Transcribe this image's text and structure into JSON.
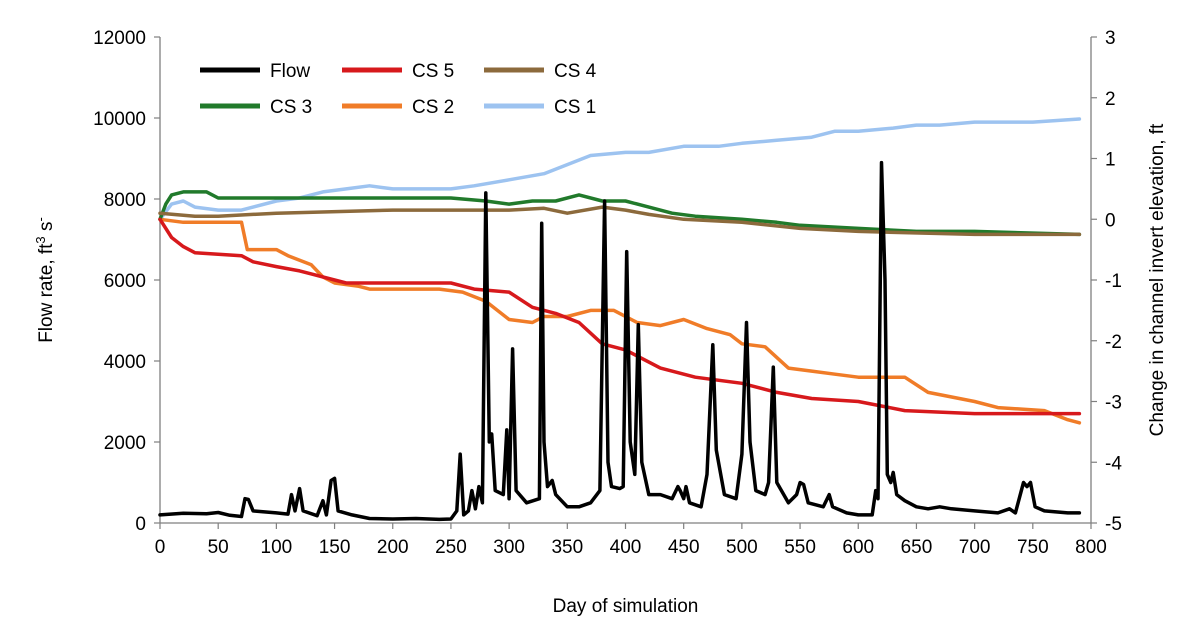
{
  "chart_data": {
    "type": "line",
    "xlabel": "Day of simulation",
    "ylabel_left": "Flow rate, ft",
    "ylabel_left_sup": "3",
    "ylabel_left_tail": " s",
    "ylabel_left_tail_sup": "-",
    "ylabel_right": "Change in channel invert elevation, ft",
    "xlim": [
      0,
      800
    ],
    "ylim_left": [
      0,
      12000
    ],
    "ylim_right": [
      -5,
      3
    ],
    "x_ticks": [
      "0",
      "50",
      "100",
      "150",
      "200",
      "250",
      "300",
      "350",
      "400",
      "450",
      "500",
      "550",
      "600",
      "650",
      "700",
      "750",
      "800"
    ],
    "y_left_ticks": [
      "0",
      "2000",
      "4000",
      "6000",
      "8000",
      "10000",
      "12000"
    ],
    "y_right_ticks": [
      "-5",
      "-4",
      "-3",
      "-2",
      "-1",
      "0",
      "1",
      "2",
      "3"
    ],
    "grid": false,
    "legend_position": "top-left",
    "series": [
      {
        "name": "Flow",
        "axis": "left",
        "color": "#000000",
        "width": 3.5,
        "points": [
          [
            0,
            200
          ],
          [
            20,
            240
          ],
          [
            40,
            230
          ],
          [
            50,
            260
          ],
          [
            60,
            190
          ],
          [
            70,
            160
          ],
          [
            73,
            600
          ],
          [
            76,
            580
          ],
          [
            80,
            300
          ],
          [
            100,
            250
          ],
          [
            110,
            220
          ],
          [
            113,
            700
          ],
          [
            116,
            300
          ],
          [
            120,
            850
          ],
          [
            123,
            300
          ],
          [
            135,
            180
          ],
          [
            140,
            550
          ],
          [
            143,
            200
          ],
          [
            147,
            1050
          ],
          [
            150,
            1100
          ],
          [
            153,
            300
          ],
          [
            165,
            200
          ],
          [
            180,
            110
          ],
          [
            200,
            100
          ],
          [
            220,
            110
          ],
          [
            240,
            90
          ],
          [
            250,
            100
          ],
          [
            255,
            300
          ],
          [
            258,
            1700
          ],
          [
            261,
            200
          ],
          [
            265,
            300
          ],
          [
            268,
            800
          ],
          [
            271,
            350
          ],
          [
            274,
            900
          ],
          [
            277,
            500
          ],
          [
            280,
            8150
          ],
          [
            283,
            2000
          ],
          [
            285,
            2200
          ],
          [
            288,
            800
          ],
          [
            295,
            700
          ],
          [
            298,
            2300
          ],
          [
            300,
            600
          ],
          [
            303,
            4300
          ],
          [
            306,
            800
          ],
          [
            315,
            500
          ],
          [
            326,
            600
          ],
          [
            328,
            7400
          ],
          [
            330,
            2000
          ],
          [
            333,
            900
          ],
          [
            337,
            1050
          ],
          [
            340,
            700
          ],
          [
            350,
            400
          ],
          [
            360,
            400
          ],
          [
            370,
            500
          ],
          [
            378,
            800
          ],
          [
            382,
            7950
          ],
          [
            385,
            1500
          ],
          [
            388,
            900
          ],
          [
            395,
            850
          ],
          [
            398,
            900
          ],
          [
            401,
            6700
          ],
          [
            404,
            2000
          ],
          [
            408,
            1200
          ],
          [
            411,
            4900
          ],
          [
            414,
            1500
          ],
          [
            420,
            700
          ],
          [
            430,
            700
          ],
          [
            440,
            600
          ],
          [
            445,
            900
          ],
          [
            447,
            800
          ],
          [
            450,
            600
          ],
          [
            452,
            900
          ],
          [
            455,
            500
          ],
          [
            465,
            400
          ],
          [
            470,
            1200
          ],
          [
            475,
            4400
          ],
          [
            478,
            1800
          ],
          [
            485,
            700
          ],
          [
            495,
            600
          ],
          [
            500,
            1700
          ],
          [
            504,
            4950
          ],
          [
            507,
            2000
          ],
          [
            512,
            800
          ],
          [
            520,
            700
          ],
          [
            523,
            1000
          ],
          [
            527,
            3850
          ],
          [
            530,
            1000
          ],
          [
            540,
            500
          ],
          [
            547,
            700
          ],
          [
            550,
            1000
          ],
          [
            553,
            950
          ],
          [
            557,
            500
          ],
          [
            570,
            400
          ],
          [
            575,
            700
          ],
          [
            578,
            400
          ],
          [
            590,
            250
          ],
          [
            600,
            200
          ],
          [
            612,
            200
          ],
          [
            615,
            800
          ],
          [
            617,
            600
          ],
          [
            620,
            8900
          ],
          [
            623,
            6000
          ],
          [
            625,
            1200
          ],
          [
            628,
            1000
          ],
          [
            630,
            1250
          ],
          [
            633,
            700
          ],
          [
            640,
            550
          ],
          [
            650,
            400
          ],
          [
            660,
            350
          ],
          [
            670,
            400
          ],
          [
            680,
            350
          ],
          [
            700,
            300
          ],
          [
            720,
            250
          ],
          [
            730,
            350
          ],
          [
            735,
            250
          ],
          [
            742,
            1000
          ],
          [
            745,
            900
          ],
          [
            748,
            1000
          ],
          [
            752,
            400
          ],
          [
            760,
            300
          ],
          [
            780,
            250
          ],
          [
            790,
            250
          ]
        ]
      },
      {
        "name": "CS 5",
        "axis": "right",
        "color": "#d7191c",
        "width": 3.5,
        "points": [
          [
            0,
            0
          ],
          [
            10,
            -0.3
          ],
          [
            20,
            -0.45
          ],
          [
            30,
            -0.55
          ],
          [
            70,
            -0.6
          ],
          [
            80,
            -0.7
          ],
          [
            100,
            -0.78
          ],
          [
            120,
            -0.85
          ],
          [
            130,
            -0.9
          ],
          [
            150,
            -1.0
          ],
          [
            160,
            -1.05
          ],
          [
            250,
            -1.05
          ],
          [
            270,
            -1.15
          ],
          [
            300,
            -1.2
          ],
          [
            320,
            -1.45
          ],
          [
            340,
            -1.55
          ],
          [
            360,
            -1.7
          ],
          [
            380,
            -2.05
          ],
          [
            400,
            -2.15
          ],
          [
            430,
            -2.45
          ],
          [
            460,
            -2.6
          ],
          [
            500,
            -2.7
          ],
          [
            530,
            -2.85
          ],
          [
            560,
            -2.95
          ],
          [
            600,
            -3.0
          ],
          [
            640,
            -3.15
          ],
          [
            700,
            -3.2
          ],
          [
            790,
            -3.2
          ]
        ]
      },
      {
        "name": "CS 4",
        "axis": "right",
        "color": "#8c6a3c",
        "width": 3.5,
        "points": [
          [
            0,
            0.1
          ],
          [
            30,
            0.05
          ],
          [
            50,
            0.05
          ],
          [
            100,
            0.1
          ],
          [
            200,
            0.15
          ],
          [
            300,
            0.15
          ],
          [
            330,
            0.18
          ],
          [
            350,
            0.1
          ],
          [
            380,
            0.2
          ],
          [
            400,
            0.15
          ],
          [
            420,
            0.08
          ],
          [
            450,
            0.0
          ],
          [
            500,
            -0.05
          ],
          [
            550,
            -0.15
          ],
          [
            600,
            -0.2
          ],
          [
            700,
            -0.25
          ],
          [
            790,
            -0.25
          ]
        ]
      },
      {
        "name": "CS 3",
        "axis": "right",
        "color": "#217a2b",
        "width": 3.5,
        "points": [
          [
            0,
            0
          ],
          [
            5,
            0.25
          ],
          [
            10,
            0.4
          ],
          [
            20,
            0.45
          ],
          [
            40,
            0.45
          ],
          [
            50,
            0.35
          ],
          [
            100,
            0.35
          ],
          [
            200,
            0.35
          ],
          [
            250,
            0.35
          ],
          [
            280,
            0.3
          ],
          [
            300,
            0.25
          ],
          [
            320,
            0.3
          ],
          [
            340,
            0.3
          ],
          [
            360,
            0.4
          ],
          [
            380,
            0.3
          ],
          [
            400,
            0.3
          ],
          [
            420,
            0.2
          ],
          [
            440,
            0.1
          ],
          [
            460,
            0.05
          ],
          [
            500,
            0.0
          ],
          [
            530,
            -0.05
          ],
          [
            550,
            -0.1
          ],
          [
            600,
            -0.15
          ],
          [
            650,
            -0.2
          ],
          [
            700,
            -0.2
          ],
          [
            790,
            -0.25
          ]
        ]
      },
      {
        "name": "CS 2",
        "axis": "right",
        "color": "#f07c28",
        "width": 3.5,
        "points": [
          [
            0,
            0
          ],
          [
            20,
            -0.05
          ],
          [
            70,
            -0.05
          ],
          [
            75,
            -0.5
          ],
          [
            100,
            -0.5
          ],
          [
            110,
            -0.6
          ],
          [
            130,
            -0.75
          ],
          [
            140,
            -0.95
          ],
          [
            150,
            -1.05
          ],
          [
            170,
            -1.1
          ],
          [
            180,
            -1.15
          ],
          [
            240,
            -1.15
          ],
          [
            260,
            -1.2
          ],
          [
            280,
            -1.35
          ],
          [
            300,
            -1.65
          ],
          [
            320,
            -1.7
          ],
          [
            330,
            -1.6
          ],
          [
            350,
            -1.6
          ],
          [
            370,
            -1.5
          ],
          [
            390,
            -1.5
          ],
          [
            410,
            -1.7
          ],
          [
            430,
            -1.75
          ],
          [
            450,
            -1.65
          ],
          [
            470,
            -1.8
          ],
          [
            490,
            -1.9
          ],
          [
            500,
            -2.05
          ],
          [
            520,
            -2.1
          ],
          [
            540,
            -2.45
          ],
          [
            560,
            -2.5
          ],
          [
            580,
            -2.55
          ],
          [
            600,
            -2.6
          ],
          [
            640,
            -2.6
          ],
          [
            660,
            -2.85
          ],
          [
            700,
            -3.0
          ],
          [
            720,
            -3.1
          ],
          [
            760,
            -3.15
          ],
          [
            780,
            -3.3
          ],
          [
            790,
            -3.35
          ]
        ]
      },
      {
        "name": "CS 1",
        "axis": "right",
        "color": "#9dc3f0",
        "width": 3.5,
        "points": [
          [
            0,
            0
          ],
          [
            10,
            0.25
          ],
          [
            20,
            0.3
          ],
          [
            30,
            0.2
          ],
          [
            50,
            0.15
          ],
          [
            70,
            0.15
          ],
          [
            100,
            0.3
          ],
          [
            120,
            0.35
          ],
          [
            140,
            0.45
          ],
          [
            160,
            0.5
          ],
          [
            180,
            0.55
          ],
          [
            200,
            0.5
          ],
          [
            250,
            0.5
          ],
          [
            270,
            0.55
          ],
          [
            300,
            0.65
          ],
          [
            330,
            0.75
          ],
          [
            350,
            0.9
          ],
          [
            370,
            1.05
          ],
          [
            400,
            1.1
          ],
          [
            420,
            1.1
          ],
          [
            450,
            1.2
          ],
          [
            480,
            1.2
          ],
          [
            500,
            1.25
          ],
          [
            530,
            1.3
          ],
          [
            560,
            1.35
          ],
          [
            580,
            1.45
          ],
          [
            600,
            1.45
          ],
          [
            630,
            1.5
          ],
          [
            650,
            1.55
          ],
          [
            670,
            1.55
          ],
          [
            700,
            1.6
          ],
          [
            750,
            1.6
          ],
          [
            790,
            1.65
          ]
        ]
      }
    ],
    "legend": [
      {
        "label": "Flow",
        "color": "#000000"
      },
      {
        "label": "CS 5",
        "color": "#d7191c"
      },
      {
        "label": "CS 4",
        "color": "#8c6a3c"
      },
      {
        "label": "CS 3",
        "color": "#217a2b"
      },
      {
        "label": "CS 2",
        "color": "#f07c28"
      },
      {
        "label": "CS 1",
        "color": "#9dc3f0"
      }
    ]
  }
}
